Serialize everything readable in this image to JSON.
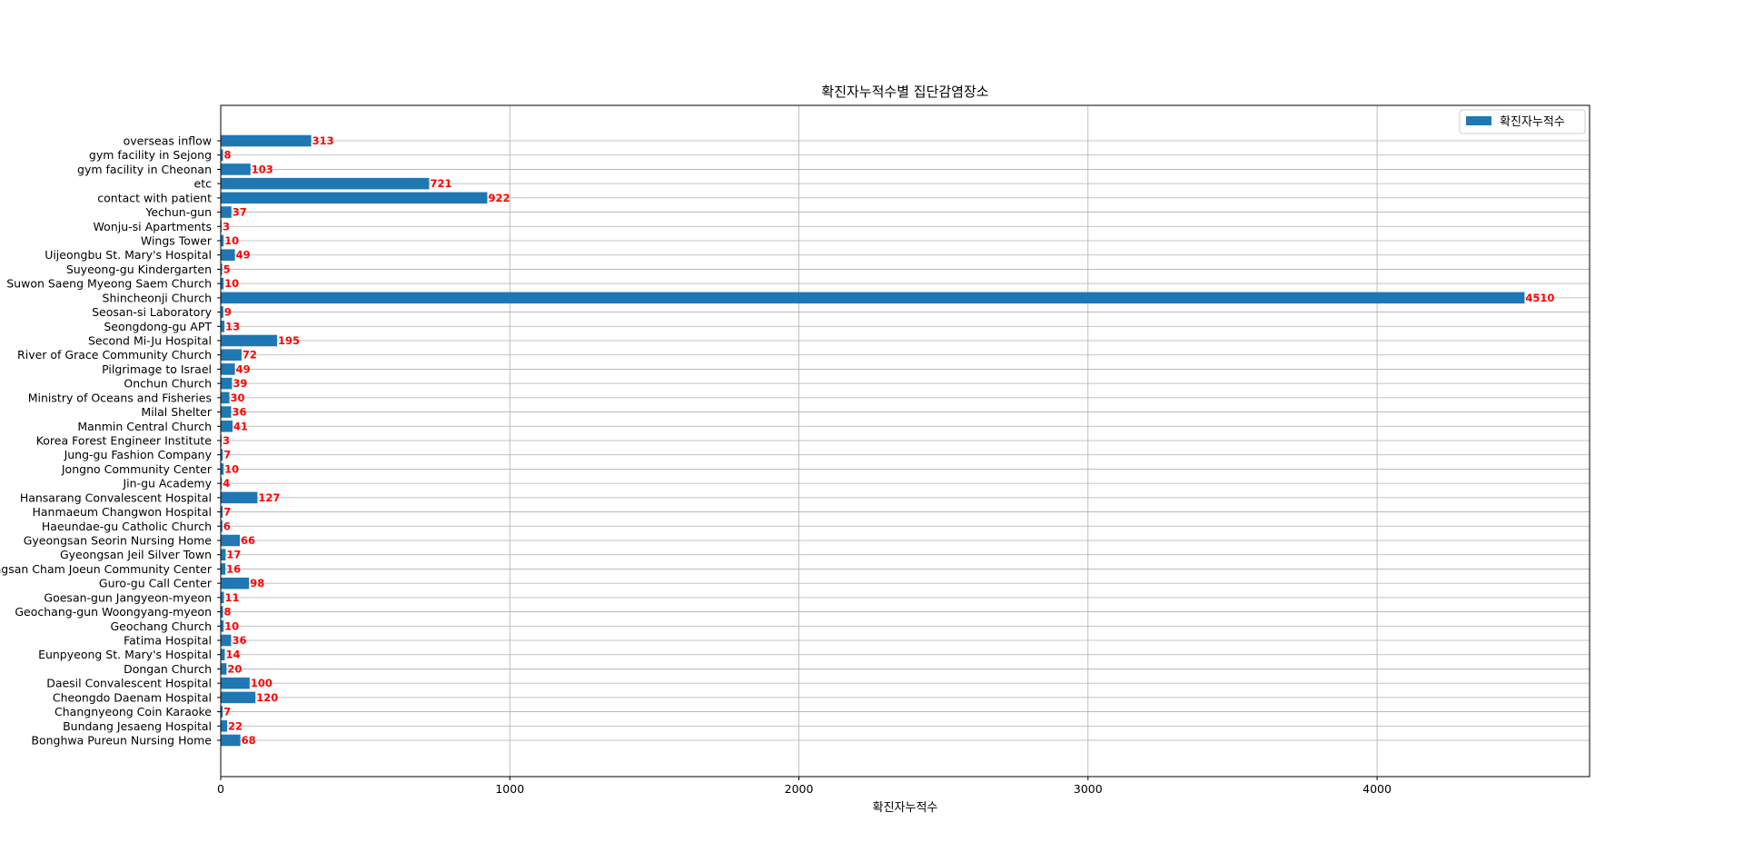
{
  "chart_data": {
    "type": "bar",
    "orientation": "horizontal",
    "title": "확진자누적수별 집단감염장소",
    "xlabel": "확진자누적수",
    "ylabel": "",
    "xlim": [
      0,
      4735
    ],
    "xticks": [
      0,
      1000,
      2000,
      3000,
      4000
    ],
    "grid": true,
    "legend": {
      "entries": [
        "확진자누적수"
      ],
      "placement": "top-right"
    },
    "bar_color": "#1f77b4",
    "value_label_color": "#ff0000",
    "categories": [
      "Bonghwa Pureun Nursing Home",
      "Bundang Jesaeng Hospital",
      "Changnyeong Coin Karaoke",
      "Cheongdo Daenam Hospital",
      "Daesil Convalescent Hospital",
      "Dongan Church",
      "Eunpyeong St. Mary's Hospital",
      "Fatima Hospital",
      "Geochang Church",
      "Geochang-gun Woongyang-myeon",
      "Goesan-gun Jangyeon-myeon",
      "Guro-gu Call Center",
      "Gyeongsan Cham Joeun Community Center",
      "Gyeongsan Jeil Silver Town",
      "Gyeongsan Seorin Nursing Home",
      "Haeundae-gu Catholic Church",
      "Hanmaeum Changwon Hospital",
      "Hansarang Convalescent Hospital",
      "Jin-gu Academy",
      "Jongno Community Center",
      "Jung-gu Fashion Company",
      "Korea Forest Engineer Institute",
      "Manmin Central Church",
      "Milal Shelter",
      "Ministry of Oceans and Fisheries",
      "Onchun Church",
      "Pilgrimage to Israel",
      "River of Grace Community Church",
      "Second Mi-Ju Hospital",
      "Seongdong-gu APT",
      "Seosan-si Laboratory",
      "Shincheonji Church",
      "Suwon Saeng Myeong Saem Church",
      "Suyeong-gu Kindergarten",
      "Uijeongbu St. Mary's Hospital",
      "Wings Tower",
      "Wonju-si Apartments",
      "Yechun-gun",
      "contact with patient",
      "etc",
      "gym facility in Cheonan",
      "gym facility in Sejong",
      "overseas inflow"
    ],
    "values": [
      68,
      22,
      7,
      120,
      100,
      20,
      14,
      36,
      10,
      8,
      11,
      98,
      16,
      17,
      66,
      6,
      7,
      127,
      4,
      10,
      7,
      3,
      41,
      36,
      30,
      39,
      49,
      72,
      195,
      13,
      9,
      4510,
      10,
      5,
      49,
      10,
      3,
      37,
      922,
      721,
      103,
      8,
      313
    ]
  }
}
